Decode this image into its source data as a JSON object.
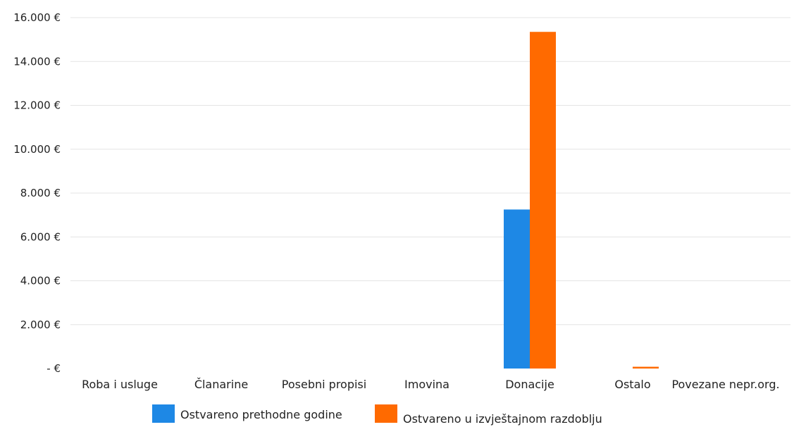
{
  "chart_data": {
    "type": "bar",
    "categories": [
      "Roba i usluge",
      "Članarine",
      "Posebni propisi",
      "Imovina",
      "Donacije",
      "Ostalo",
      "Povezane nepr.org."
    ],
    "series": [
      {
        "name": "Ostvareno prethodne godine",
        "color": "#1e88e5",
        "values": [
          0,
          0,
          0,
          0,
          7250,
          0,
          0
        ]
      },
      {
        "name": "Ostvareno u izvještajnom razdoblju",
        "color": "#ff6a00",
        "values": [
          0,
          0,
          0,
          0,
          15350,
          80,
          0
        ]
      }
    ],
    "y_ticks": [
      {
        "value": 0,
        "label": "- €"
      },
      {
        "value": 2000,
        "label": "2.000 €"
      },
      {
        "value": 4000,
        "label": "4.000 €"
      },
      {
        "value": 6000,
        "label": "6.000 €"
      },
      {
        "value": 8000,
        "label": "8.000 €"
      },
      {
        "value": 10000,
        "label": "10.000 €"
      },
      {
        "value": 12000,
        "label": "12.000 €"
      },
      {
        "value": 14000,
        "label": "14.000 €"
      },
      {
        "value": 16000,
        "label": "16.000 €"
      }
    ],
    "ylim": [
      0,
      16000
    ],
    "grid": true,
    "legend_position": "bottom"
  }
}
